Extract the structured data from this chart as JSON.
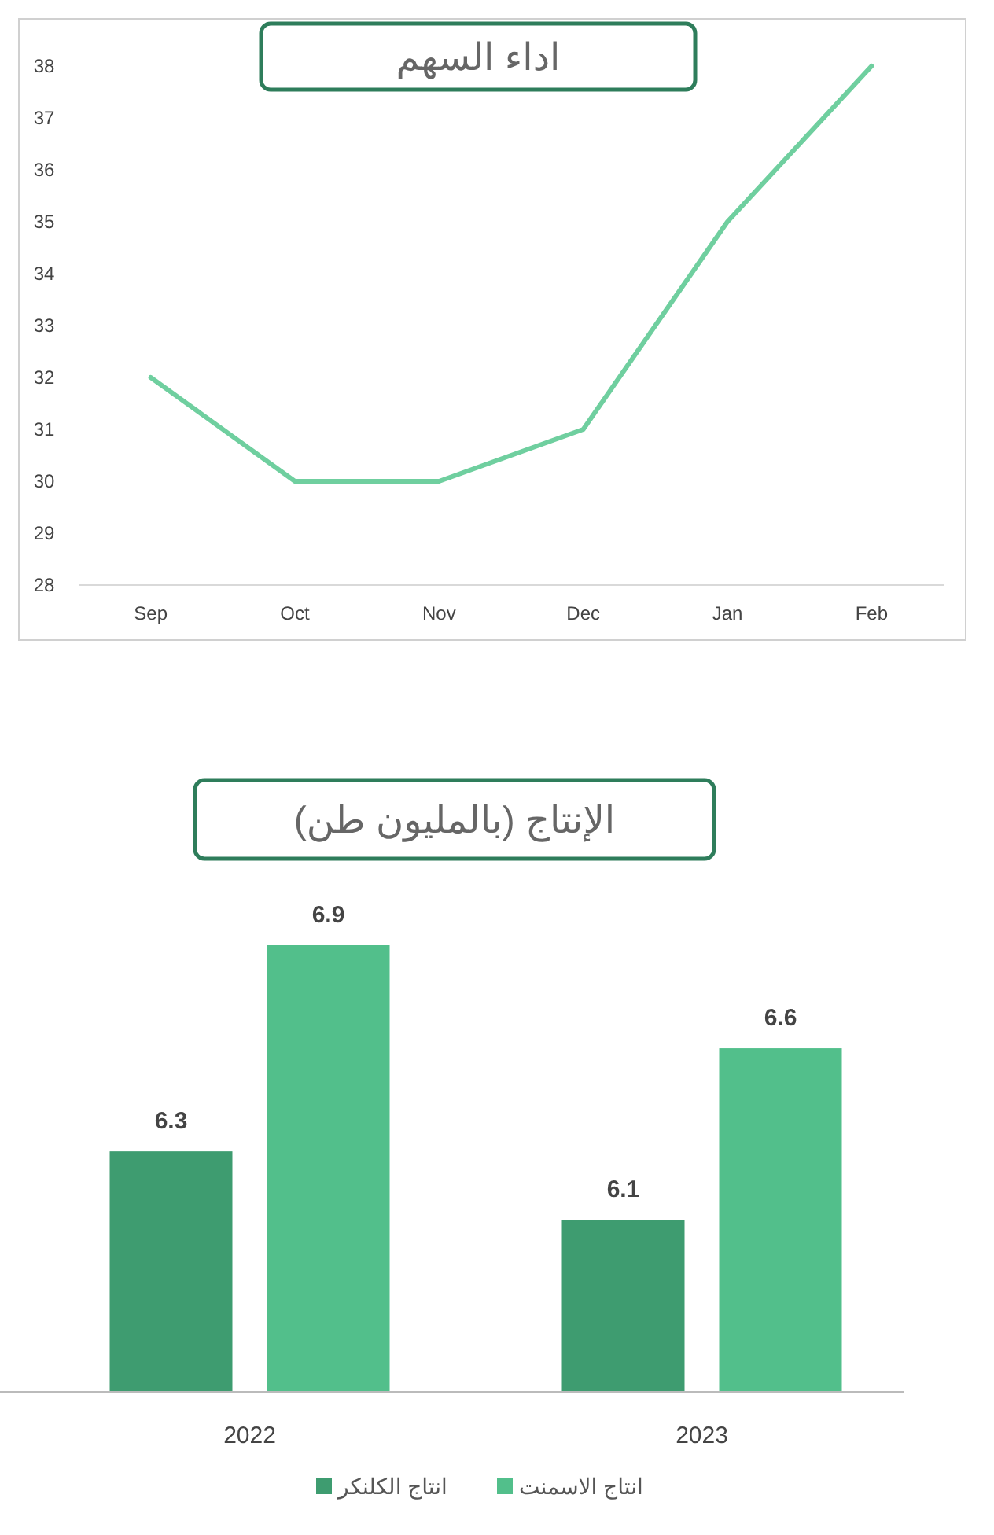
{
  "chart_data": [
    {
      "type": "line",
      "title": "اداء السهم",
      "categories": [
        "Sep",
        "Oct",
        "Nov",
        "Dec",
        "Jan",
        "Feb"
      ],
      "series": [
        {
          "color": "#6fcf9f",
          "values": [
            32,
            30,
            30,
            31,
            35,
            38
          ]
        }
      ],
      "ylim": [
        28,
        38
      ],
      "yticks": [
        28,
        29,
        30,
        31,
        32,
        33,
        34,
        35,
        36,
        37,
        38
      ],
      "marker": "none",
      "line_style": "solid"
    },
    {
      "type": "bar",
      "title": "الإنتاج (بالمليون طن)",
      "categories": [
        "2022",
        "2023"
      ],
      "series": [
        {
          "name": "انتاج الكلنكر",
          "color": "#3e9c70",
          "values": [
            6.3,
            6.1
          ]
        },
        {
          "name": "انتاج الاسمنت",
          "color": "#52bf8b",
          "values": [
            6.9,
            6.6
          ]
        }
      ],
      "ylim": [
        5.6,
        6.9
      ],
      "tick_labels": "x",
      "data_labels": true,
      "legend": "bottom"
    }
  ]
}
